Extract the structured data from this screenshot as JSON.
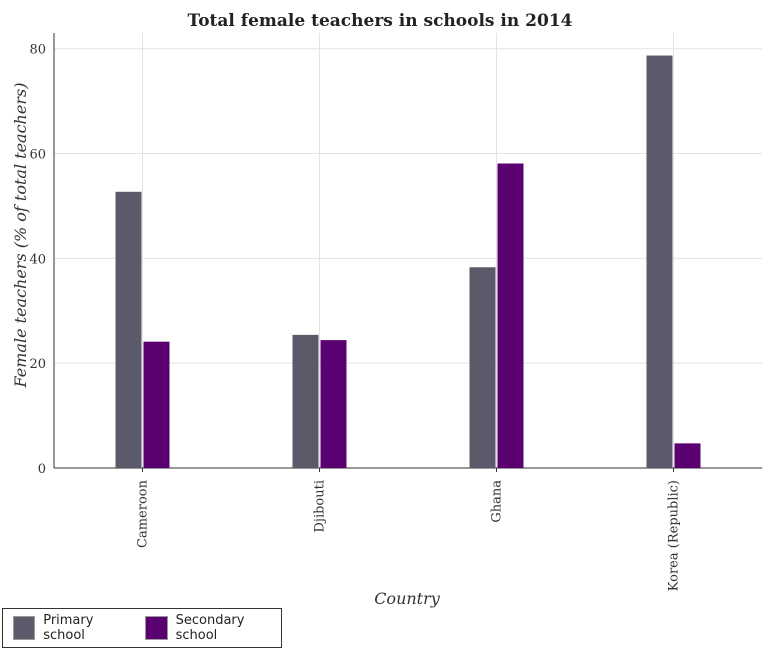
{
  "chart_data": {
    "type": "bar",
    "title": "Total female teachers in schools in 2014",
    "xlabel": "Country",
    "ylabel": "Female teachers (% of total teachers)",
    "categories": [
      "Cameroon",
      "Djibouti",
      "Ghana",
      "Korea (Republic)"
    ],
    "series": [
      {
        "name": "Primary school",
        "color": "#5a5a6b",
        "values": [
          52.7,
          25.4,
          38.3,
          78.7
        ]
      },
      {
        "name": "Secondary school",
        "color": "#5b0070",
        "values": [
          24.1,
          24.4,
          58.1,
          4.7
        ]
      }
    ],
    "ylim": [
      0,
      83
    ],
    "yticks": [
      0,
      20,
      40,
      60,
      80
    ],
    "grid": true,
    "legend_position": "bottom-left"
  }
}
